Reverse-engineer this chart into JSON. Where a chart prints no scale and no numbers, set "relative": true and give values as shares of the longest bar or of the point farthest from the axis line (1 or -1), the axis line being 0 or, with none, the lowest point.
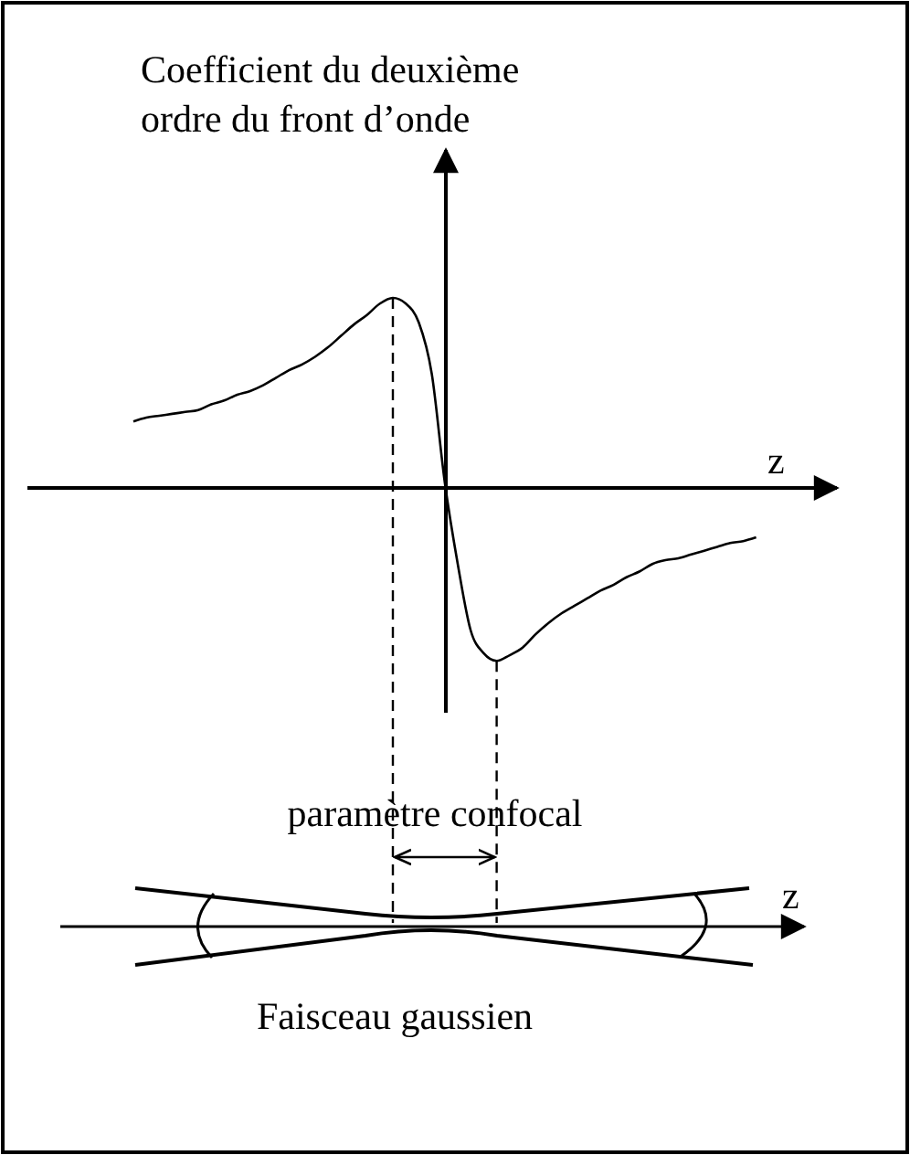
{
  "chart_data": {
    "type": "line",
    "relative": true,
    "ylabel": "Coefficient du deuxième ordre du front d’onde",
    "xlabel": "z",
    "categories": [
      null,
      null,
      null,
      null,
      null,
      null,
      null,
      null,
      null,
      null,
      null,
      null,
      null,
      null,
      null,
      null,
      null,
      null,
      null,
      null,
      null,
      null,
      null,
      null,
      null,
      null,
      null,
      null,
      null,
      null,
      null,
      null,
      null,
      null,
      null,
      null,
      null,
      null,
      null,
      null,
      null,
      null,
      null,
      null,
      null,
      null,
      null,
      null,
      null
    ],
    "series": [
      {
        "color": "#000000",
        "values": [
          0.35,
          0.37,
          0.38,
          0.39,
          0.4,
          0.41,
          0.44,
          0.46,
          0.49,
          0.51,
          0.54,
          0.58,
          0.62,
          0.65,
          0.69,
          0.74,
          0.8,
          0.86,
          0.91,
          0.97,
          1,
          0.97,
          0.87,
          0.6,
          0.03,
          -0.4,
          -0.75,
          -0.87,
          -0.91,
          -0.88,
          -0.84,
          -0.77,
          -0.71,
          -0.66,
          -0.62,
          -0.58,
          -0.54,
          -0.51,
          -0.47,
          -0.44,
          -0.4,
          -0.38,
          -0.37,
          -0.35,
          -0.33,
          -0.31,
          -0.29,
          -0.28,
          -0.26
        ]
      }
    ],
    "annotations": [
      "paramètre confocal",
      "z",
      "Faisceau gaussien"
    ],
    "grid": false,
    "marker": "none",
    "line_style": "solid"
  }
}
